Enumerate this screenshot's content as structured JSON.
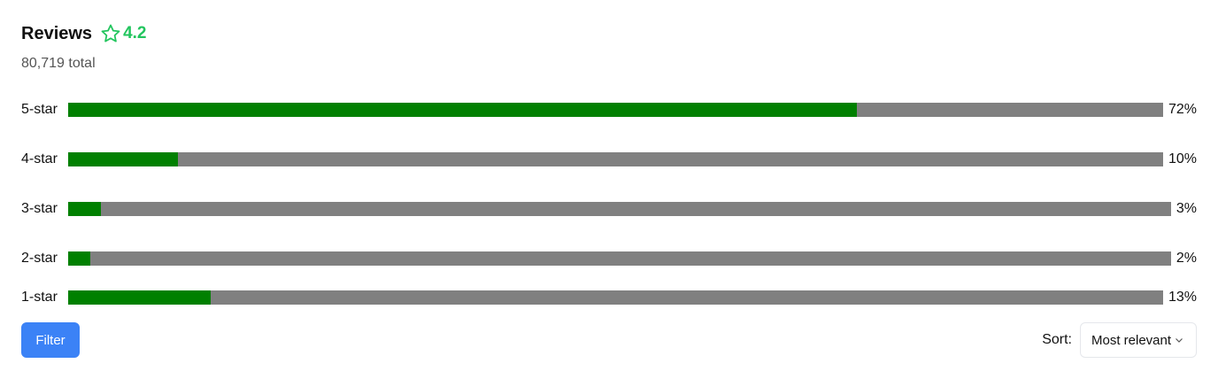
{
  "header": {
    "title": "Reviews",
    "rating": "4.2",
    "rating_icon": "star-outline-icon",
    "total": "80,719 total"
  },
  "colors": {
    "accent_green": "#22c55e",
    "bar_fill": "#008000",
    "bar_track": "#808080",
    "button_blue": "#3b82f6"
  },
  "ratings": [
    {
      "label": "5-star",
      "percent_text": "72%",
      "percent": 72
    },
    {
      "label": "4-star",
      "percent_text": "10%",
      "percent": 10
    },
    {
      "label": "3-star",
      "percent_text": "3%",
      "percent": 3
    },
    {
      "label": "2-star",
      "percent_text": "2%",
      "percent": 2
    },
    {
      "label": "1-star",
      "percent_text": "13%",
      "percent": 13
    }
  ],
  "footer": {
    "filter_label": "Filter",
    "sort_label": "Sort:",
    "sort_value": "Most relevant"
  }
}
